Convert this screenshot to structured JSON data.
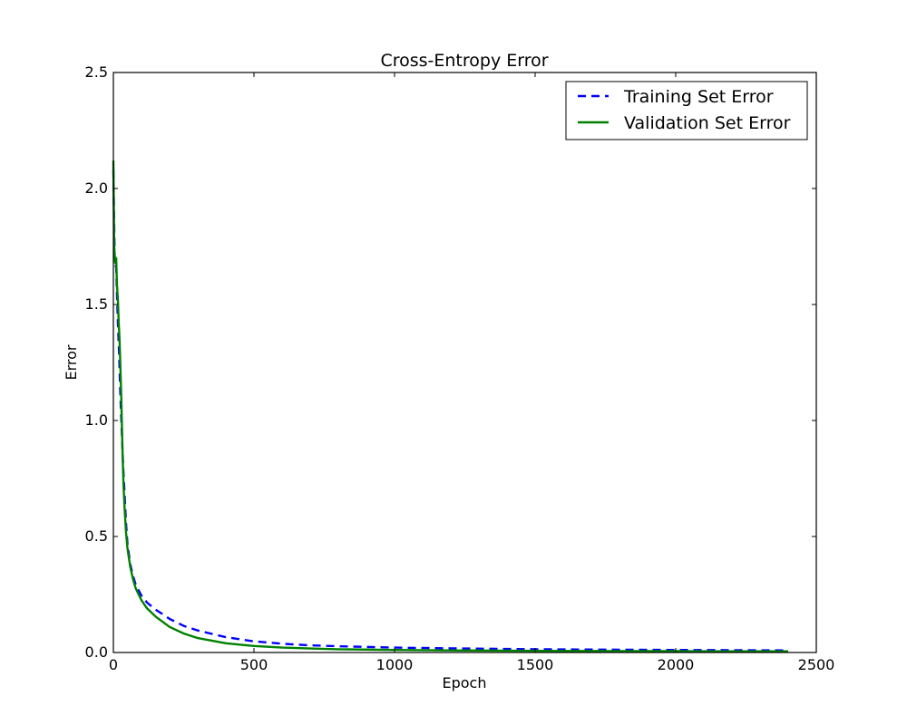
{
  "chart_data": {
    "type": "line",
    "title": "Cross-Entropy Error",
    "xlabel": "Epoch",
    "ylabel": "Error",
    "xlim": [
      0,
      2500
    ],
    "ylim": [
      0,
      2.5
    ],
    "xticks": [
      0,
      500,
      1000,
      1500,
      2000,
      2500
    ],
    "xtick_labels": [
      "0",
      "500",
      "1000",
      "1500",
      "2000",
      "2500"
    ],
    "yticks": [
      0.0,
      0.5,
      1.0,
      1.5,
      2.0,
      2.5
    ],
    "ytick_labels": [
      "0.0",
      "0.5",
      "1.0",
      "1.5",
      "2.0",
      "2.5"
    ],
    "grid": false,
    "legend_position": "top-right",
    "series": [
      {
        "name": "Training Set Error",
        "style": "dashed",
        "color": "#0000ff",
        "x": [
          0,
          5,
          10,
          15,
          20,
          25,
          30,
          35,
          40,
          45,
          50,
          60,
          70,
          80,
          100,
          120,
          150,
          200,
          250,
          300,
          400,
          500,
          600,
          700,
          800,
          1000,
          1200,
          1500,
          1800,
          2000,
          2200,
          2400
        ],
        "y": [
          2.08,
          1.68,
          1.66,
          1.45,
          1.3,
          1.1,
          0.95,
          0.8,
          0.68,
          0.56,
          0.47,
          0.38,
          0.33,
          0.29,
          0.245,
          0.215,
          0.185,
          0.145,
          0.115,
          0.095,
          0.066,
          0.048,
          0.038,
          0.031,
          0.027,
          0.021,
          0.018,
          0.014,
          0.012,
          0.011,
          0.01,
          0.009
        ]
      },
      {
        "name": "Validation Set Error",
        "style": "solid",
        "color": "#008000",
        "x": [
          0,
          3,
          6,
          10,
          13,
          16,
          19,
          22,
          25,
          28,
          30,
          33,
          36,
          40,
          45,
          50,
          60,
          70,
          80,
          100,
          120,
          150,
          200,
          250,
          300,
          400,
          500,
          600,
          700,
          800,
          1000,
          1200,
          1500,
          1800,
          2000,
          2200,
          2400
        ],
        "y": [
          2.12,
          1.75,
          1.68,
          1.7,
          1.58,
          1.52,
          1.42,
          1.35,
          1.22,
          1.1,
          1.0,
          0.85,
          0.72,
          0.62,
          0.52,
          0.45,
          0.37,
          0.315,
          0.275,
          0.225,
          0.19,
          0.155,
          0.11,
          0.082,
          0.062,
          0.04,
          0.028,
          0.021,
          0.017,
          0.014,
          0.011,
          0.009,
          0.007,
          0.006,
          0.006,
          0.005,
          0.005
        ]
      }
    ]
  }
}
